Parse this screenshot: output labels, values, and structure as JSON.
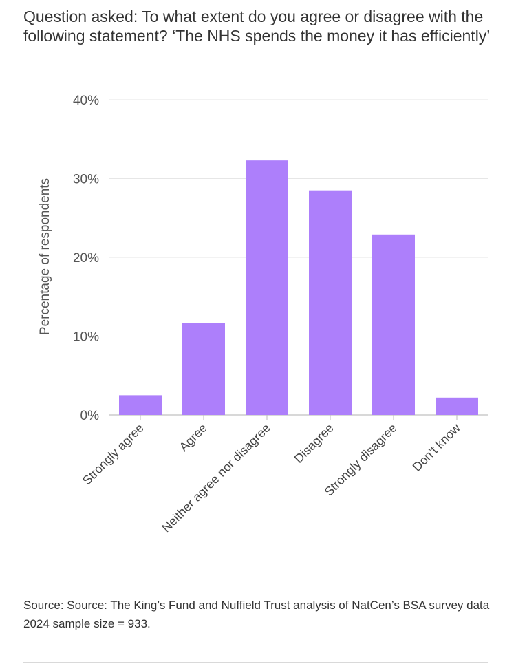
{
  "chart_data": {
    "type": "bar",
    "title": "Question asked: To what extent do you agree or disagree with the following statement? ‘The NHS spends the money it has efficiently’",
    "categories": [
      "Strongly agree",
      "Agree",
      "Neither agree nor disagree",
      "Disagree",
      "Strongly disagree",
      "Don’t know"
    ],
    "series": [
      {
        "values": [
          2.5,
          11.7,
          32.3,
          28.5,
          22.9,
          2.2
        ]
      }
    ],
    "xlabel": "",
    "ylabel": "Percentage of respondents",
    "ylim": [
      0,
      40
    ],
    "yticks": [
      0,
      10,
      20,
      30,
      40
    ],
    "ytick_labels": [
      "0%",
      "10%",
      "20%",
      "30%",
      "40%"
    ],
    "grid": true,
    "bar_color": "#ad7ffb",
    "legend": "none"
  },
  "source": {
    "line1": "Source: Source: The King’s Fund and Nuffield Trust analysis of NatCen’s BSA survey data",
    "line2": "2024 sample size = 933."
  }
}
